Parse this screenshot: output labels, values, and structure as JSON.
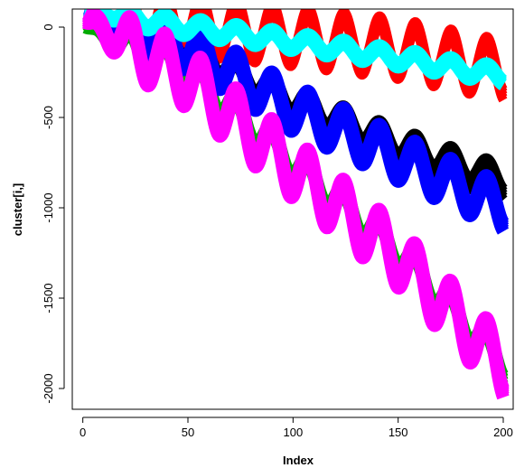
{
  "chart_data": {
    "type": "line",
    "title": "",
    "xlabel": "Index",
    "ylabel": "cluster[i,]",
    "xlim": [
      1,
      200
    ],
    "ylim": [
      -2200,
      120
    ],
    "x_ticks": [
      0,
      50,
      100,
      150,
      200
    ],
    "y_ticks": [
      0,
      -500,
      -1000,
      -1500,
      -2000
    ],
    "period": 17,
    "grid": false,
    "legend": "none",
    "series": [
      {
        "color": "#ff0000",
        "lw": 10,
        "start": 40,
        "trend": [
          [
            1,
            40
          ],
          [
            50,
            10
          ],
          [
            100,
            -50
          ],
          [
            150,
            -120
          ],
          [
            200,
            -240
          ]
        ],
        "amplitude": 140,
        "band": 30
      },
      {
        "color": "#00aa00",
        "lw": 12,
        "start": 30,
        "trend": [
          [
            1,
            30
          ],
          [
            50,
            -250
          ],
          [
            100,
            -760
          ],
          [
            150,
            -1250
          ],
          [
            200,
            -1870
          ]
        ],
        "amplitude": 90,
        "band": 35
      },
      {
        "color": "#000000",
        "lw": 12,
        "start": 60,
        "trend": [
          [
            1,
            60
          ],
          [
            50,
            -120
          ],
          [
            100,
            -420
          ],
          [
            150,
            -660
          ],
          [
            200,
            -860
          ]
        ],
        "amplitude": 70,
        "band": 30
      },
      {
        "color": "#0000ff",
        "lw": 14,
        "start": 80,
        "trend": [
          [
            1,
            80
          ],
          [
            50,
            -110
          ],
          [
            100,
            -450
          ],
          [
            150,
            -720
          ],
          [
            200,
            -1000
          ]
        ],
        "amplitude": 110,
        "band": 25
      },
      {
        "color": "#00ffff",
        "lw": 14,
        "start": 90,
        "trend": [
          [
            1,
            90
          ],
          [
            50,
            0
          ],
          [
            100,
            -80
          ],
          [
            150,
            -170
          ],
          [
            200,
            -270
          ]
        ],
        "amplitude": 40,
        "band": 12
      },
      {
        "color": "#ff00ff",
        "lw": 14,
        "start": 50,
        "trend": [
          [
            1,
            50
          ],
          [
            50,
            -280
          ],
          [
            100,
            -780
          ],
          [
            150,
            -1270
          ],
          [
            200,
            -1880
          ]
        ],
        "amplitude": 150,
        "band": 25
      }
    ]
  }
}
